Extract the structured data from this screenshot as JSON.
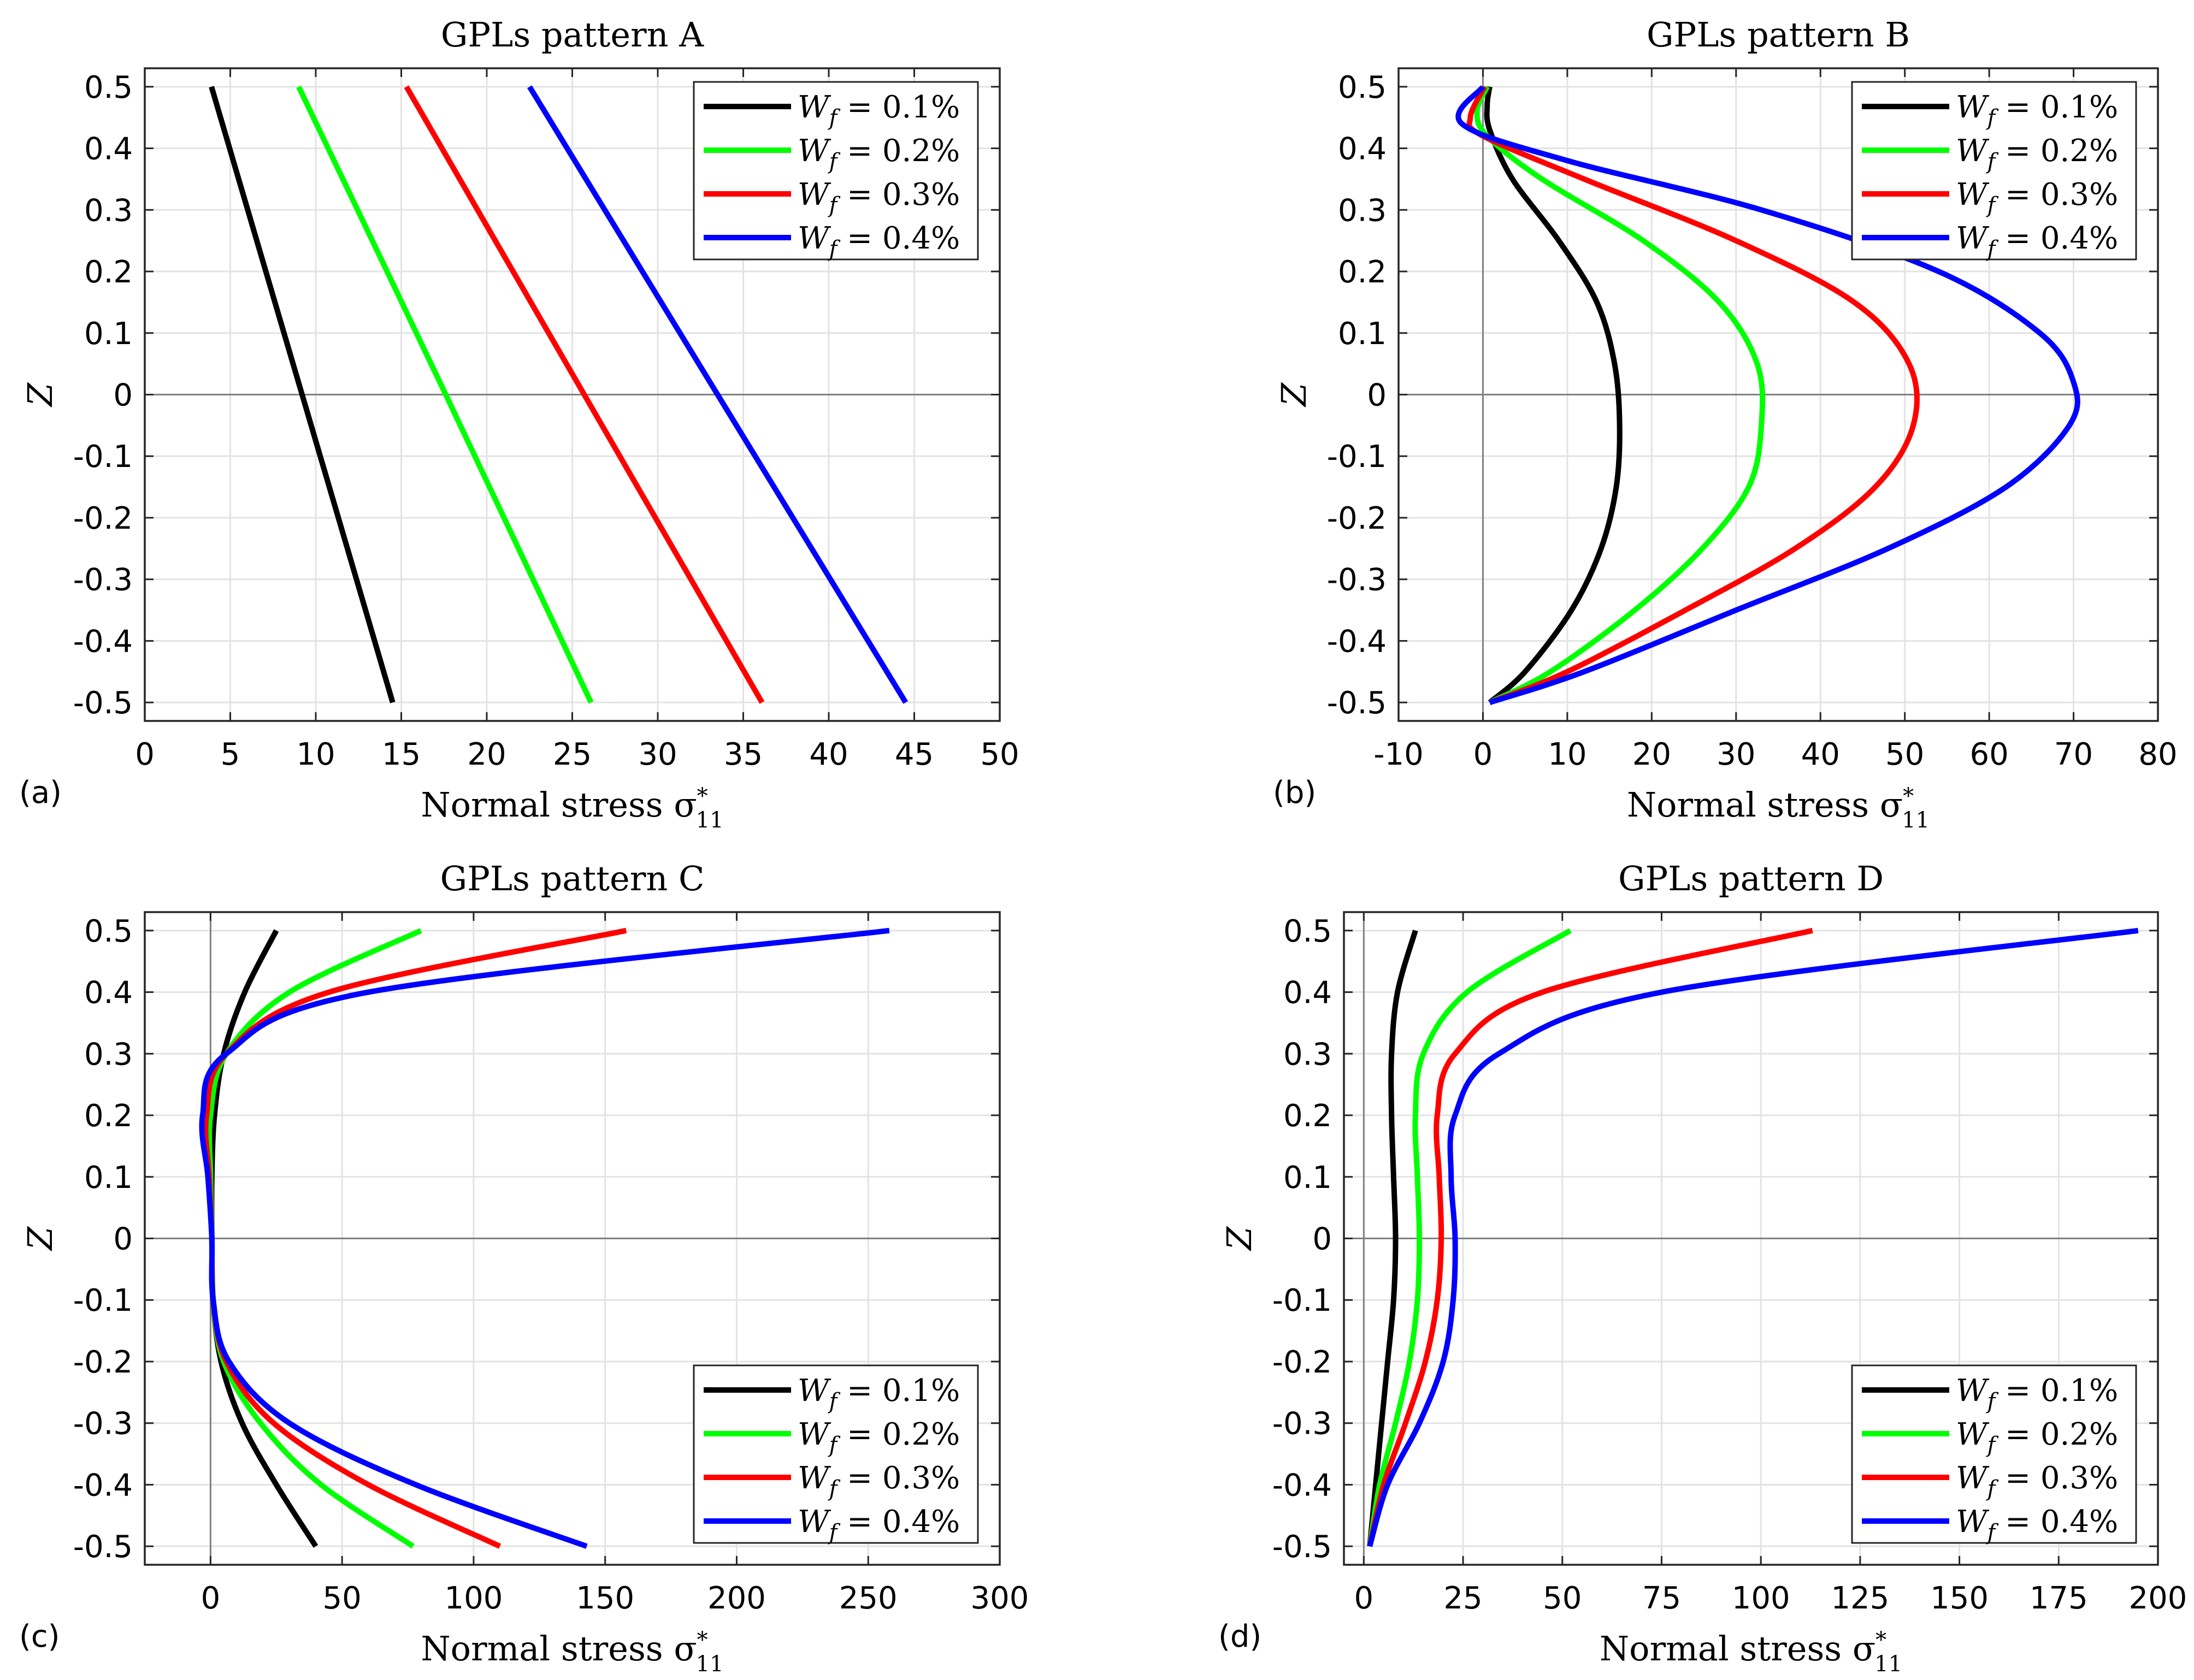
{
  "chart_data": [
    {
      "type": "line",
      "panel_letter": "(a)",
      "title": "GPLs pattern A",
      "xlabel": "Normal stress σ*11",
      "ylabel": "Z",
      "xlim": [
        0,
        50
      ],
      "ylim": [
        -0.53,
        0.53
      ],
      "xticks": [
        0,
        5,
        10,
        15,
        20,
        25,
        30,
        35,
        40,
        45,
        50
      ],
      "yticks": [
        -0.5,
        -0.4,
        -0.3,
        -0.2,
        -0.1,
        0,
        0.1,
        0.2,
        0.3,
        0.4,
        0.5
      ],
      "grid": true,
      "legend_position": "top-right",
      "series": [
        {
          "name": "Wf = 0.1%",
          "color": "#000000",
          "points": [
            [
              3.9,
              0.5
            ],
            [
              9.2,
              0.0
            ],
            [
              14.5,
              -0.5
            ]
          ]
        },
        {
          "name": "Wf = 0.2%",
          "color": "#00ff00",
          "points": [
            [
              9.0,
              0.5
            ],
            [
              17.6,
              0.0
            ],
            [
              26.1,
              -0.5
            ]
          ]
        },
        {
          "name": "Wf = 0.3%",
          "color": "#ff0000",
          "points": [
            [
              15.3,
              0.5
            ],
            [
              25.7,
              0.0
            ],
            [
              36.1,
              -0.5
            ]
          ]
        },
        {
          "name": "Wf = 0.4%",
          "color": "#0000ff",
          "points": [
            [
              22.5,
              0.5
            ],
            [
              33.5,
              0.0
            ],
            [
              44.5,
              -0.5
            ]
          ]
        }
      ]
    },
    {
      "type": "line",
      "panel_letter": "(b)",
      "title": "GPLs pattern B",
      "xlabel": "Normal stress σ*11",
      "ylabel": "Z",
      "xlim": [
        -10,
        80
      ],
      "ylim": [
        -0.53,
        0.53
      ],
      "xticks": [
        -10,
        0,
        10,
        20,
        30,
        40,
        50,
        60,
        70,
        80
      ],
      "yticks": [
        -0.5,
        -0.4,
        -0.3,
        -0.2,
        -0.1,
        0,
        0.1,
        0.2,
        0.3,
        0.4,
        0.5
      ],
      "grid": true,
      "legend_position": "top-right",
      "series": [
        {
          "name": "Wf = 0.1%",
          "color": "#000000",
          "points": [
            [
              0.8,
              -0.5
            ],
            [
              5,
              -0.45
            ],
            [
              10.5,
              -0.35
            ],
            [
              14,
              -0.25
            ],
            [
              15.8,
              -0.15
            ],
            [
              16.2,
              -0.05
            ],
            [
              15.6,
              0.05
            ],
            [
              13.5,
              0.15
            ],
            [
              9,
              0.25
            ],
            [
              3.5,
              0.35
            ],
            [
              0.8,
              0.43
            ],
            [
              0.5,
              0.47
            ],
            [
              0.8,
              0.5
            ]
          ]
        },
        {
          "name": "Wf = 0.2%",
          "color": "#00ff00",
          "points": [
            [
              0.8,
              -0.5
            ],
            [
              8,
              -0.45
            ],
            [
              18,
              -0.35
            ],
            [
              26,
              -0.25
            ],
            [
              31.5,
              -0.15
            ],
            [
              33,
              -0.05
            ],
            [
              32.5,
              0.05
            ],
            [
              28,
              0.15
            ],
            [
              19,
              0.25
            ],
            [
              7,
              0.35
            ],
            [
              0.5,
              0.42
            ],
            [
              -0.7,
              0.46
            ],
            [
              0.5,
              0.5
            ]
          ]
        },
        {
          "name": "Wf = 0.3%",
          "color": "#ff0000",
          "points": [
            [
              0.8,
              -0.5
            ],
            [
              10,
              -0.45
            ],
            [
              24,
              -0.35
            ],
            [
              37,
              -0.25
            ],
            [
              46.5,
              -0.15
            ],
            [
              51,
              -0.05
            ],
            [
              50.5,
              0.05
            ],
            [
              44,
              0.15
            ],
            [
              30,
              0.25
            ],
            [
              12,
              0.35
            ],
            [
              0,
              0.42
            ],
            [
              -1.5,
              0.45
            ],
            [
              0.2,
              0.5
            ]
          ]
        },
        {
          "name": "Wf = 0.4%",
          "color": "#0000ff",
          "points": [
            [
              0.8,
              -0.5
            ],
            [
              12,
              -0.45
            ],
            [
              30,
              -0.35
            ],
            [
              48,
              -0.25
            ],
            [
              62,
              -0.15
            ],
            [
              69.5,
              -0.05
            ],
            [
              70,
              0.02
            ],
            [
              66,
              0.1
            ],
            [
              54,
              0.2
            ],
            [
              33,
              0.3
            ],
            [
              10,
              0.38
            ],
            [
              -2.5,
              0.44
            ],
            [
              0,
              0.5
            ]
          ]
        }
      ]
    },
    {
      "type": "line",
      "panel_letter": "(c)",
      "title": "GPLs pattern C",
      "xlabel": "Normal stress σ*11",
      "ylabel": "Z",
      "xlim": [
        -25,
        300
      ],
      "ylim": [
        -0.53,
        0.53
      ],
      "xticks": [
        0,
        50,
        100,
        150,
        200,
        250,
        300
      ],
      "yticks": [
        -0.5,
        -0.4,
        -0.3,
        -0.2,
        -0.1,
        0,
        0.1,
        0.2,
        0.3,
        0.4,
        0.5
      ],
      "grid": true,
      "legend_position": "bottom-right",
      "series": [
        {
          "name": "Wf = 0.1%",
          "color": "#000000",
          "points": [
            [
              40,
              -0.5
            ],
            [
              25,
              -0.4
            ],
            [
              12,
              -0.3
            ],
            [
              4,
              -0.2
            ],
            [
              1,
              -0.1
            ],
            [
              0.5,
              0
            ],
            [
              0.5,
              0.1
            ],
            [
              1.5,
              0.2
            ],
            [
              5,
              0.3
            ],
            [
              13,
              0.4
            ],
            [
              25,
              0.5
            ]
          ]
        },
        {
          "name": "Wf = 0.2%",
          "color": "#00ff00",
          "points": [
            [
              77,
              -0.5
            ],
            [
              42,
              -0.4
            ],
            [
              19,
              -0.3
            ],
            [
              5,
              -0.2
            ],
            [
              1,
              -0.1
            ],
            [
              0.5,
              0
            ],
            [
              0,
              0.1
            ],
            [
              0,
              0.2
            ],
            [
              6,
              0.3
            ],
            [
              30,
              0.4
            ],
            [
              80,
              0.5
            ]
          ]
        },
        {
          "name": "Wf = 0.3%",
          "color": "#ff0000",
          "points": [
            [
              110,
              -0.5
            ],
            [
              60,
              -0.4
            ],
            [
              24,
              -0.3
            ],
            [
              6,
              -0.2
            ],
            [
              1,
              -0.1
            ],
            [
              0.5,
              0
            ],
            [
              -0.5,
              0.1
            ],
            [
              -1.5,
              0.2
            ],
            [
              6,
              0.3
            ],
            [
              45,
              0.4
            ],
            [
              158,
              0.5
            ]
          ]
        },
        {
          "name": "Wf = 0.4%",
          "color": "#0000ff",
          "points": [
            [
              143,
              -0.5
            ],
            [
              78,
              -0.4
            ],
            [
              30,
              -0.3
            ],
            [
              7,
              -0.2
            ],
            [
              1,
              -0.1
            ],
            [
              0.5,
              0
            ],
            [
              -1,
              0.1
            ],
            [
              -3,
              0.2
            ],
            [
              6,
              0.3
            ],
            [
              60,
              0.4
            ],
            [
              258,
              0.5
            ]
          ]
        }
      ]
    },
    {
      "type": "line",
      "panel_letter": "(d)",
      "title": "GPLs pattern D",
      "xlabel": "Normal stress σ*11",
      "ylabel": "Z",
      "xlim": [
        -5,
        200
      ],
      "ylim": [
        -0.53,
        0.53
      ],
      "xticks": [
        0,
        25,
        50,
        75,
        100,
        125,
        150,
        175,
        200
      ],
      "yticks": [
        -0.5,
        -0.4,
        -0.3,
        -0.2,
        -0.1,
        0,
        0.1,
        0.2,
        0.3,
        0.4,
        0.5
      ],
      "grid": true,
      "legend_position": "bottom-right",
      "series": [
        {
          "name": "Wf = 0.1%",
          "color": "#000000",
          "points": [
            [
              1.5,
              -0.5
            ],
            [
              3,
              -0.4
            ],
            [
              4.5,
              -0.3
            ],
            [
              6,
              -0.2
            ],
            [
              7.5,
              -0.1
            ],
            [
              8,
              0
            ],
            [
              7.5,
              0.1
            ],
            [
              7,
              0.2
            ],
            [
              7,
              0.3
            ],
            [
              8.5,
              0.4
            ],
            [
              13,
              0.5
            ]
          ]
        },
        {
          "name": "Wf = 0.2%",
          "color": "#00ff00",
          "points": [
            [
              1.5,
              -0.5
            ],
            [
              4,
              -0.4
            ],
            [
              8,
              -0.3
            ],
            [
              11.5,
              -0.2
            ],
            [
              13.5,
              -0.1
            ],
            [
              14,
              0
            ],
            [
              13.5,
              0.1
            ],
            [
              13,
              0.2
            ],
            [
              15,
              0.3
            ],
            [
              26,
              0.4
            ],
            [
              52,
              0.5
            ]
          ]
        },
        {
          "name": "Wf = 0.3%",
          "color": "#ff0000",
          "points": [
            [
              1.5,
              -0.5
            ],
            [
              5,
              -0.4
            ],
            [
              10.5,
              -0.3
            ],
            [
              15.5,
              -0.2
            ],
            [
              18.5,
              -0.1
            ],
            [
              19.5,
              0
            ],
            [
              19,
              0.1
            ],
            [
              18.5,
              0.2
            ],
            [
              23,
              0.3
            ],
            [
              45,
              0.4
            ],
            [
              113,
              0.5
            ]
          ]
        },
        {
          "name": "Wf = 0.4%",
          "color": "#0000ff",
          "points": [
            [
              1.5,
              -0.5
            ],
            [
              6,
              -0.4
            ],
            [
              14,
              -0.3
            ],
            [
              20,
              -0.2
            ],
            [
              22.5,
              -0.1
            ],
            [
              23,
              0
            ],
            [
              22,
              0.1
            ],
            [
              23,
              0.2
            ],
            [
              34,
              0.3
            ],
            [
              75,
              0.4
            ],
            [
              195,
              0.5
            ]
          ]
        }
      ]
    }
  ]
}
